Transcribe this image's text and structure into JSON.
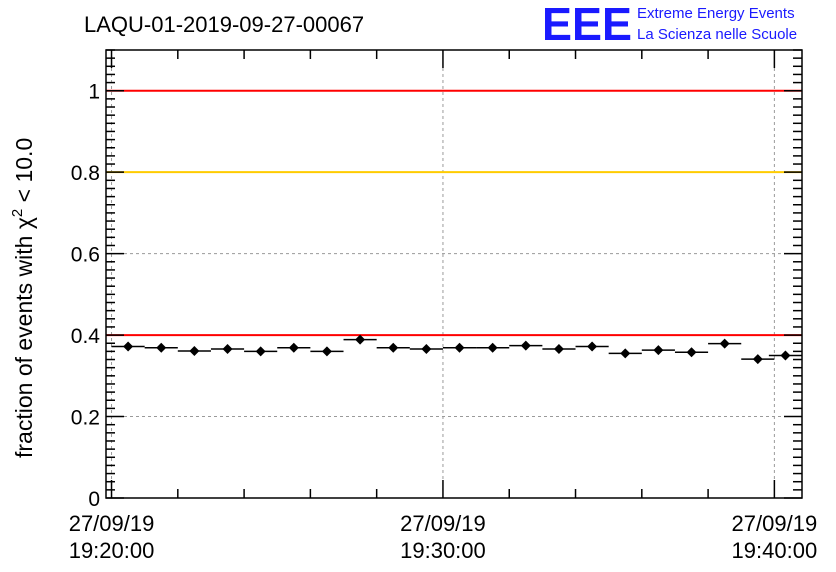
{
  "chart_data": {
    "type": "scatter",
    "title": "LAQU-01-2019-09-27-00067",
    "ylabel_prefix": "fraction of events with ",
    "ylabel_symbol": "χ",
    "ylabel_sup": "2",
    "ylabel_suffix": " < 10.0",
    "ylim": [
      0,
      1.1
    ],
    "y_ticks": [
      0,
      0.2,
      0.4,
      0.6,
      0.8,
      1
    ],
    "y_tick_labels": [
      "0",
      "0.2",
      "0.4",
      "0.6",
      "0.8",
      "1"
    ],
    "x_unit": "minutes",
    "xlim": [
      "19:19:50",
      "19:40:50"
    ],
    "x_ticks": [
      {
        "date": "27/09/19",
        "time": "19:20:00",
        "minute": 0
      },
      {
        "date": "27/09/19",
        "time": "19:30:00",
        "minute": 10
      },
      {
        "date": "27/09/19",
        "time": "19:40:00",
        "minute": 20
      }
    ],
    "grid": true,
    "reference_lines": [
      {
        "y": 1.0,
        "color": "#ff0000"
      },
      {
        "y": 0.8,
        "color": "#ffcc00"
      },
      {
        "y": 0.4,
        "color": "#ff0000"
      }
    ],
    "series": [
      {
        "x": [
          "19:20:30",
          "19:21:30",
          "19:22:30",
          "19:23:30",
          "19:24:30",
          "19:25:30",
          "19:26:30",
          "19:27:30",
          "19:28:30",
          "19:29:30",
          "19:30:30",
          "19:31:30",
          "19:32:30",
          "19:33:30",
          "19:34:30",
          "19:35:30",
          "19:36:30",
          "19:37:30",
          "19:38:30",
          "19:39:30",
          "19:40:20"
        ],
        "y": [
          0.372,
          0.369,
          0.361,
          0.366,
          0.36,
          0.369,
          0.36,
          0.389,
          0.369,
          0.366,
          0.369,
          0.369,
          0.374,
          0.366,
          0.372,
          0.355,
          0.363,
          0.358,
          0.379,
          0.341,
          0.35
        ],
        "y_err": [
          0.01,
          0.01,
          0.01,
          0.01,
          0.01,
          0.01,
          0.01,
          0.01,
          0.01,
          0.01,
          0.01,
          0.01,
          0.01,
          0.01,
          0.01,
          0.01,
          0.01,
          0.01,
          0.01,
          0.01,
          0.01
        ],
        "marker_color": "#000000"
      }
    ]
  },
  "logo": {
    "mark": "EEE",
    "line1": "Extreme Energy Events",
    "line2": "La Scienza nelle Scuole",
    "color": "#1a1aff"
  }
}
